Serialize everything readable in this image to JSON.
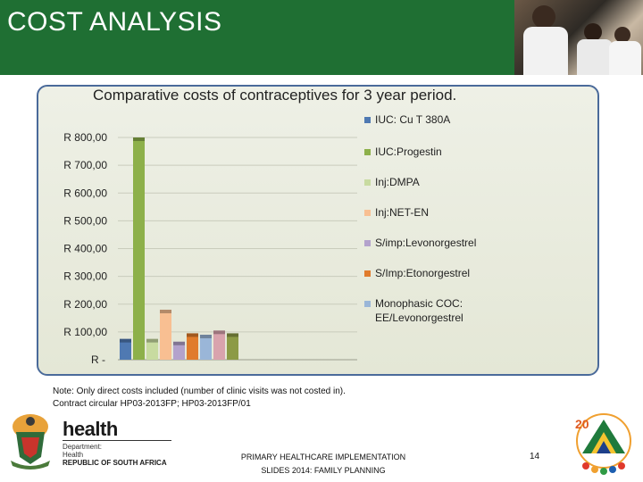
{
  "slide": {
    "title": "COST ANALYSIS",
    "note_lines": [
      "Note: Only direct costs included (number of clinic visits was not costed in).",
      "Contract circular HP03-2013FP; HP03-2013FP/01"
    ],
    "footer_lines": [
      "PRIMARY HEALTHCARE IMPLEMENTATION",
      "SLIDES 2014: FAMILY PLANNING"
    ],
    "page_number": "14",
    "logo": {
      "word": "health",
      "sub_lines": [
        "Department:",
        "Health"
      ],
      "country": "REPUBLIC OF SOUTH AFRICA"
    }
  },
  "chart_data": {
    "type": "bar",
    "title": "Comparative costs of contraceptives for 3 year period.",
    "ylim": [
      0,
      800
    ],
    "yticks": [
      {
        "value": 0,
        "label": "R -"
      },
      {
        "value": 100,
        "label": "R 100,00"
      },
      {
        "value": 200,
        "label": "R 200,00"
      },
      {
        "value": 300,
        "label": "R 300,00"
      },
      {
        "value": 400,
        "label": "R 400,00"
      },
      {
        "value": 500,
        "label": "R 500,00"
      },
      {
        "value": 600,
        "label": "R 600,00"
      },
      {
        "value": 700,
        "label": "R 700,00"
      },
      {
        "value": 800,
        "label": "R 800,00"
      }
    ],
    "grid": true,
    "legend_position": "right",
    "series": [
      {
        "name": "IUC: Cu T 380A",
        "value": 75,
        "color": "#4f79b2"
      },
      {
        "name": "IUC:Progestin",
        "value": 800,
        "color": "#8db04a"
      },
      {
        "name": "Inj:DMPA",
        "value": 75,
        "color": "#c8dba0"
      },
      {
        "name": "Inj:NET-EN",
        "value": 180,
        "color": "#f8bf92"
      },
      {
        "name": "S/imp:Levonorgestrel",
        "value": 65,
        "color": "#b3a2cc"
      },
      {
        "name": "S/Imp:Etonorgestrel",
        "value": 95,
        "color": "#e07b2c"
      },
      {
        "name": "Monophasic COC: EE/Levonorgestrel",
        "value": 90,
        "color": "#9ab6d8"
      },
      {
        "name": "",
        "value": 105,
        "color": "#d9a3ad"
      },
      {
        "name": "",
        "value": 95,
        "color": "#8c9a46"
      }
    ]
  }
}
